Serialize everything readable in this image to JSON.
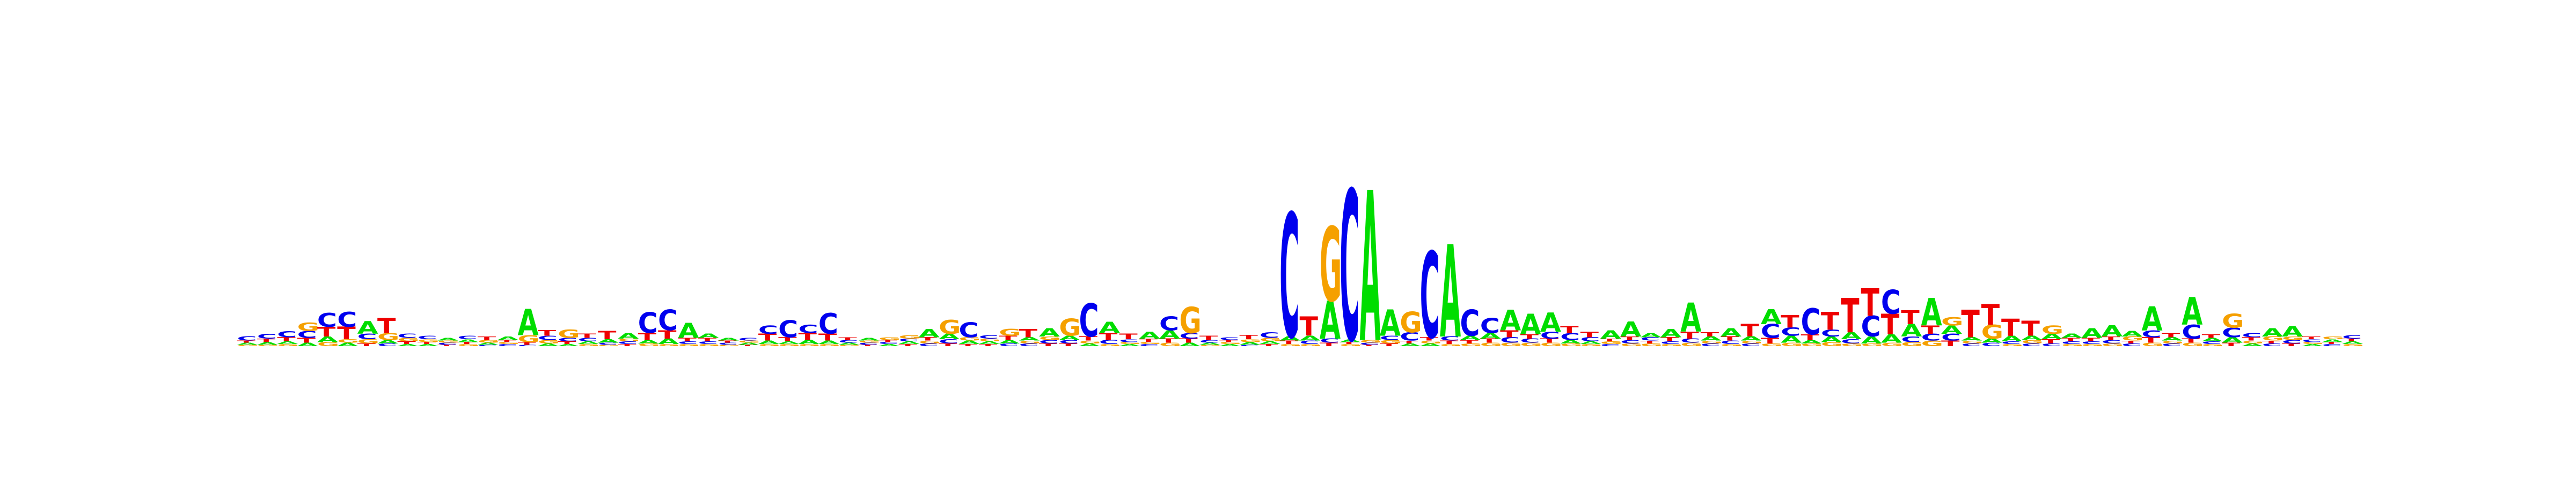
{
  "colors": {
    "A": "#00dd00",
    "C": "#0000ee",
    "G": "#f5a000",
    "T": "#ee0000"
  },
  "chart_data": {
    "type": "sequence-logo",
    "ylim": [
      0,
      2
    ],
    "positions": [
      {
        "A": 0.03,
        "C": 0.06,
        "G": 0.02,
        "T": 0.03
      },
      {
        "A": 0.04,
        "C": 0.07,
        "G": 0.02,
        "T": 0.05
      },
      {
        "A": 0.04,
        "C": 0.09,
        "G": 0.03,
        "T": 0.06
      },
      {
        "A": 0.05,
        "C": 0.1,
        "G": 0.12,
        "T": 0.07
      },
      {
        "A": 0.08,
        "C": 0.2,
        "G": 0.06,
        "T": 0.14
      },
      {
        "A": 0.05,
        "C": 0.22,
        "G": 0.05,
        "T": 0.18
      },
      {
        "A": 0.18,
        "C": 0.08,
        "G": 0.06,
        "T": 0.04
      },
      {
        "A": 0.05,
        "C": 0.04,
        "G": 0.1,
        "T": 0.22
      },
      {
        "A": 0.03,
        "C": 0.06,
        "G": 0.05,
        "T": 0.04
      },
      {
        "A": 0.03,
        "C": 0.05,
        "G": 0.04,
        "T": 0.03
      },
      {
        "A": 0.04,
        "C": 0.03,
        "G": 0.03,
        "T": 0.02
      },
      {
        "A": 0.04,
        "C": 0.05,
        "G": 0.03,
        "T": 0.03
      },
      {
        "A": 0.03,
        "C": 0.02,
        "G": 0.04,
        "T": 0.05
      },
      {
        "A": 0.05,
        "C": 0.03,
        "G": 0.03,
        "T": 0.03
      },
      {
        "A": 0.38,
        "C": 0.02,
        "G": 0.1,
        "T": 0.04
      },
      {
        "A": 0.04,
        "C": 0.06,
        "G": 0.05,
        "T": 0.08
      },
      {
        "A": 0.03,
        "C": 0.05,
        "G": 0.12,
        "T": 0.04
      },
      {
        "A": 0.04,
        "C": 0.05,
        "G": 0.03,
        "T": 0.06
      },
      {
        "A": 0.05,
        "C": 0.03,
        "G": 0.02,
        "T": 0.12
      },
      {
        "A": 0.08,
        "C": 0.04,
        "G": 0.04,
        "T": 0.03
      },
      {
        "A": 0.05,
        "C": 0.3,
        "G": 0.04,
        "T": 0.1
      },
      {
        "A": 0.08,
        "C": 0.3,
        "G": 0.03,
        "T": 0.12
      },
      {
        "A": 0.22,
        "C": 0.04,
        "G": 0.03,
        "T": 0.05
      },
      {
        "A": 0.06,
        "C": 0.04,
        "G": 0.03,
        "T": 0.05
      },
      {
        "A": 0.04,
        "C": 0.03,
        "G": 0.02,
        "T": 0.03
      },
      {
        "A": 0.03,
        "C": 0.04,
        "G": 0.03,
        "T": 0.02
      },
      {
        "A": 0.05,
        "C": 0.12,
        "G": 0.03,
        "T": 0.1
      },
      {
        "A": 0.04,
        "C": 0.25,
        "G": 0.03,
        "T": 0.06
      },
      {
        "A": 0.06,
        "C": 0.12,
        "G": 0.03,
        "T": 0.1
      },
      {
        "A": 0.05,
        "C": 0.3,
        "G": 0.03,
        "T": 0.1
      },
      {
        "A": 0.03,
        "C": 0.04,
        "G": 0.02,
        "T": 0.04
      },
      {
        "A": 0.04,
        "C": 0.03,
        "G": 0.03,
        "T": 0.02
      },
      {
        "A": 0.03,
        "C": 0.03,
        "G": 0.04,
        "T": 0.03
      },
      {
        "A": 0.04,
        "C": 0.04,
        "G": 0.05,
        "T": 0.03
      },
      {
        "A": 0.12,
        "C": 0.04,
        "G": 0.04,
        "T": 0.05
      },
      {
        "A": 0.08,
        "C": 0.06,
        "G": 0.2,
        "T": 0.04
      },
      {
        "A": 0.05,
        "C": 0.22,
        "G": 0.05,
        "T": 0.03
      },
      {
        "A": 0.04,
        "C": 0.05,
        "G": 0.04,
        "T": 0.03
      },
      {
        "A": 0.05,
        "C": 0.04,
        "G": 0.1,
        "T": 0.06
      },
      {
        "A": 0.05,
        "C": 0.04,
        "G": 0.04,
        "T": 0.12
      },
      {
        "A": 0.12,
        "C": 0.05,
        "G": 0.05,
        "T": 0.04
      },
      {
        "A": 0.06,
        "C": 0.05,
        "G": 0.25,
        "T": 0.04
      },
      {
        "A": 0.04,
        "C": 0.48,
        "G": 0.04,
        "T": 0.06
      },
      {
        "A": 0.16,
        "C": 0.06,
        "G": 0.03,
        "T": 0.1
      },
      {
        "A": 0.03,
        "C": 0.04,
        "G": 0.03,
        "T": 0.08
      },
      {
        "A": 0.1,
        "C": 0.03,
        "G": 0.03,
        "T": 0.05
      },
      {
        "A": 0.12,
        "C": 0.2,
        "G": 0.05,
        "T": 0.06
      },
      {
        "A": 0.05,
        "C": 0.08,
        "G": 0.38,
        "T": 0.06
      },
      {
        "A": 0.03,
        "C": 0.04,
        "G": 0.02,
        "T": 0.06
      },
      {
        "A": 0.03,
        "C": 0.04,
        "G": 0.03,
        "T": 0.03
      },
      {
        "A": 0.04,
        "C": 0.02,
        "G": 0.04,
        "T": 0.06
      },
      {
        "A": 0.04,
        "C": 0.08,
        "G": 0.05,
        "T": 0.03
      },
      {
        "A": 0.06,
        "C": 1.8,
        "G": 0.03,
        "T": 0.05
      },
      {
        "A": 0.07,
        "C": 0.05,
        "G": 0.03,
        "T": 0.28
      },
      {
        "A": 0.55,
        "C": 0.06,
        "G": 1.08,
        "T": 0.05
      },
      {
        "A": 0.04,
        "C": 2.18,
        "G": 0.03,
        "T": 0.03
      },
      {
        "A": 2.18,
        "C": 0.03,
        "G": 0.04,
        "T": 0.02
      },
      {
        "A": 0.38,
        "C": 0.06,
        "G": 0.05,
        "T": 0.04
      },
      {
        "A": 0.04,
        "C": 0.12,
        "G": 0.3,
        "T": 0.04
      },
      {
        "A": 0.04,
        "C": 1.25,
        "G": 0.04,
        "T": 0.05
      },
      {
        "A": 1.34,
        "C": 0.06,
        "G": 0.03,
        "T": 0.05
      },
      {
        "A": 0.06,
        "C": 0.38,
        "G": 0.04,
        "T": 0.05
      },
      {
        "A": 0.08,
        "C": 0.22,
        "G": 0.05,
        "T": 0.06
      },
      {
        "A": 0.3,
        "C": 0.08,
        "G": 0.05,
        "T": 0.1
      },
      {
        "A": 0.3,
        "C": 0.06,
        "G": 0.05,
        "T": 0.06
      },
      {
        "A": 0.28,
        "C": 0.1,
        "G": 0.05,
        "T": 0.06
      },
      {
        "A": 0.05,
        "C": 0.1,
        "G": 0.04,
        "T": 0.1
      },
      {
        "A": 0.04,
        "C": 0.06,
        "G": 0.03,
        "T": 0.08
      },
      {
        "A": 0.12,
        "C": 0.03,
        "G": 0.04,
        "T": 0.04
      },
      {
        "A": 0.22,
        "C": 0.05,
        "G": 0.04,
        "T": 0.05
      },
      {
        "A": 0.06,
        "C": 0.05,
        "G": 0.04,
        "T": 0.04
      },
      {
        "A": 0.12,
        "C": 0.04,
        "G": 0.03,
        "T": 0.06
      },
      {
        "A": 0.42,
        "C": 0.06,
        "G": 0.05,
        "T": 0.1
      },
      {
        "A": 0.06,
        "C": 0.04,
        "G": 0.04,
        "T": 0.06
      },
      {
        "A": 0.12,
        "C": 0.05,
        "G": 0.03,
        "T": 0.06
      },
      {
        "A": 0.06,
        "C": 0.04,
        "G": 0.04,
        "T": 0.18
      },
      {
        "A": 0.22,
        "C": 0.2,
        "G": 0.04,
        "T": 0.08
      },
      {
        "A": 0.1,
        "C": 0.12,
        "G": 0.05,
        "T": 0.18
      },
      {
        "A": 0.05,
        "C": 0.38,
        "G": 0.04,
        "T": 0.08
      },
      {
        "A": 0.08,
        "C": 0.1,
        "G": 0.06,
        "T": 0.26
      },
      {
        "A": 0.1,
        "C": 0.06,
        "G": 0.04,
        "T": 0.5
      },
      {
        "A": 0.1,
        "C": 0.3,
        "G": 0.04,
        "T": 0.4
      },
      {
        "A": 0.12,
        "C": 0.35,
        "G": 0.05,
        "T": 0.3
      },
      {
        "A": 0.18,
        "C": 0.08,
        "G": 0.06,
        "T": 0.2
      },
      {
        "A": 0.4,
        "C": 0.1,
        "G": 0.08,
        "T": 0.12
      },
      {
        "A": 0.12,
        "C": 0.1,
        "G": 0.12,
        "T": 0.08
      },
      {
        "A": 0.05,
        "C": 0.04,
        "G": 0.04,
        "T": 0.4
      },
      {
        "A": 0.06,
        "C": 0.05,
        "G": 0.2,
        "T": 0.3
      },
      {
        "A": 0.08,
        "C": 0.04,
        "G": 0.03,
        "T": 0.25
      },
      {
        "A": 0.06,
        "C": 0.04,
        "G": 0.05,
        "T": 0.22
      },
      {
        "A": 0.08,
        "C": 0.04,
        "G": 0.12,
        "T": 0.06
      },
      {
        "A": 0.06,
        "C": 0.04,
        "G": 0.03,
        "T": 0.05
      },
      {
        "A": 0.14,
        "C": 0.04,
        "G": 0.03,
        "T": 0.05
      },
      {
        "A": 0.16,
        "C": 0.05,
        "G": 0.04,
        "T": 0.05
      },
      {
        "A": 0.08,
        "C": 0.04,
        "G": 0.06,
        "T": 0.04
      },
      {
        "A": 0.35,
        "C": 0.1,
        "G": 0.05,
        "T": 0.08
      },
      {
        "A": 0.05,
        "C": 0.04,
        "G": 0.04,
        "T": 0.06
      },
      {
        "A": 0.4,
        "C": 0.2,
        "G": 0.05,
        "T": 0.06
      },
      {
        "A": 0.05,
        "C": 0.04,
        "G": 0.03,
        "T": 0.05
      },
      {
        "A": 0.08,
        "C": 0.14,
        "G": 0.2,
        "T": 0.05
      },
      {
        "A": 0.04,
        "C": 0.06,
        "G": 0.04,
        "T": 0.05
      },
      {
        "A": 0.12,
        "C": 0.04,
        "G": 0.06,
        "T": 0.04
      },
      {
        "A": 0.15,
        "C": 0.05,
        "G": 0.05,
        "T": 0.04
      },
      {
        "A": 0.03,
        "C": 0.04,
        "G": 0.03,
        "T": 0.04
      },
      {
        "A": 0.04,
        "C": 0.03,
        "G": 0.04,
        "T": 0.03
      },
      {
        "A": 0.04,
        "C": 0.05,
        "G": 0.03,
        "T": 0.04
      }
    ]
  }
}
